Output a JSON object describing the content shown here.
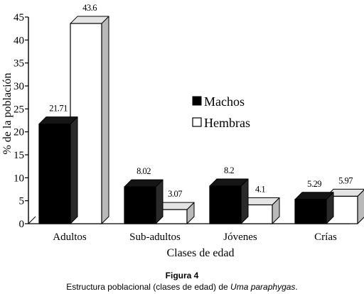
{
  "chart_data": {
    "type": "bar",
    "style": "3d-grouped",
    "categories": [
      "Adultos",
      "Sub-adultos",
      "Jóvenes",
      "Crías"
    ],
    "series": [
      {
        "name": "Machos",
        "values": [
          21.71,
          8.02,
          8.2,
          5.29
        ],
        "color": "#000000"
      },
      {
        "name": "Hembras",
        "values": [
          43.6,
          3.07,
          4.1,
          5.97
        ],
        "color": "#ffffff"
      }
    ],
    "data_labels": {
      "Machos": [
        "21.71",
        "8.02",
        "8.2",
        "5.29"
      ],
      "Hembras": [
        "43.6",
        "3.07",
        "4.1",
        "5.97"
      ]
    },
    "xlabel": "Clases de edad",
    "ylabel": "% de la población",
    "ylim": [
      0,
      45
    ],
    "yticks": [
      0,
      5,
      10,
      15,
      20,
      25,
      30,
      35,
      40,
      45
    ],
    "grid": false,
    "legend_position": "right"
  },
  "caption": {
    "figure_label": "Figura 4",
    "text_before": "Estructura poblacional (clases de edad) de ",
    "species": "Uma paraphygas",
    "text_after": "."
  }
}
